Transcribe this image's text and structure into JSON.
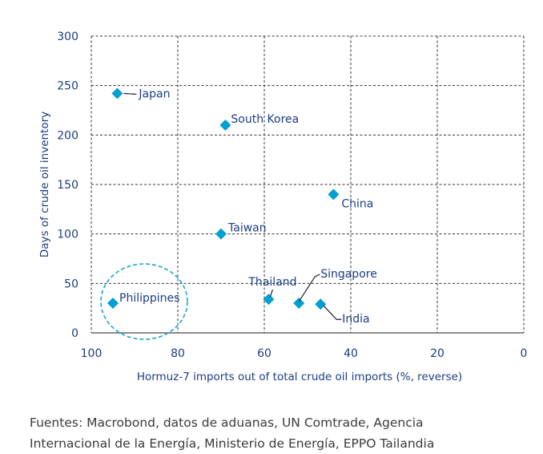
{
  "chart_data": {
    "type": "scatter",
    "title": "",
    "xlabel": "Hormuz-7 imports out of total crude oil imports (%, reverse)",
    "ylabel": "Days of crude oil inventory",
    "xlim": [
      100,
      0
    ],
    "ylim": [
      0,
      300
    ],
    "x_reversed": true,
    "xticks": [
      100,
      80,
      60,
      40,
      20,
      0
    ],
    "yticks": [
      0,
      50,
      100,
      150,
      200,
      250,
      300
    ],
    "grid": true,
    "marker": "diamond",
    "marker_color": "#00a0d2",
    "text_color": "#1b3c84",
    "points": [
      {
        "label": "Japan",
        "x": 94,
        "y": 242
      },
      {
        "label": "South Korea",
        "x": 69,
        "y": 210
      },
      {
        "label": "China",
        "x": 44,
        "y": 140
      },
      {
        "label": "Taiwan",
        "x": 70,
        "y": 100
      },
      {
        "label": "Philippines",
        "x": 95,
        "y": 30
      },
      {
        "label": "Thailand",
        "x": 59,
        "y": 34
      },
      {
        "label": "Singapore",
        "x": 52,
        "y": 30
      },
      {
        "label": "India",
        "x": 47,
        "y": 29
      }
    ],
    "annotations": [
      {
        "type": "dashed-ellipse",
        "around": "Philippines",
        "color": "#1aa6d0"
      }
    ]
  },
  "footer": {
    "line1": "Fuentes: Macrobond, datos de aduanas, UN Comtrade, Agencia",
    "line2": "Internacional de la Energía, Ministerio de Energía, EPPO Tailandia"
  }
}
